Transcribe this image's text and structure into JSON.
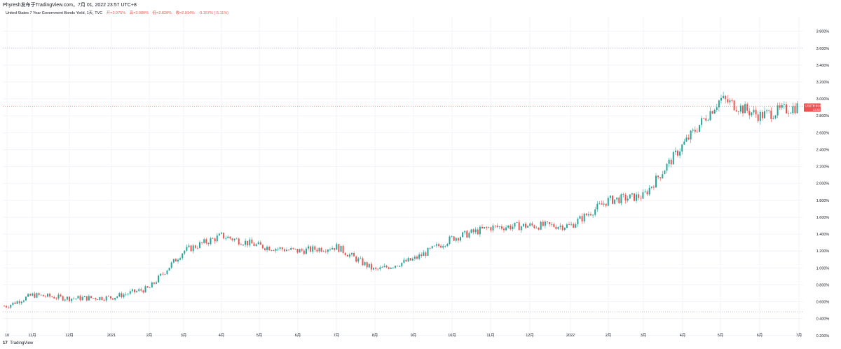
{
  "header": {
    "attribution": "Phyresh发布于TradingView.com，7月 01, 2022 23:57 UTC+8"
  },
  "legend": {
    "symbol_title": "United States 7 Year Government Bonds Yield, 1天, TVC",
    "open": "开=3.075%",
    "high": "高=3.080%",
    "low": "低=2.828%",
    "close": "收=2.914%",
    "change": "-0.157% (-5.11%)"
  },
  "price_badge": {
    "ticker": "US07Y",
    "price": "2.914%",
    "countdown": "23:02:11",
    "color": "#ef5350"
  },
  "footer": {
    "logo": "17",
    "brand": "TradingView"
  },
  "colors": {
    "up": "#26a69a",
    "down": "#ef5350",
    "grid": "#f0f3fa",
    "price_line": "#ef5350",
    "level_line": "#b2b5be"
  },
  "chart_data": {
    "type": "candlestick",
    "title": "United States 7 Year Government Bonds Yield",
    "ylabel": "",
    "y_unit": "%",
    "ylim": [
      0.2,
      3.9
    ],
    "y_ticks": [
      "0.200%",
      "0.400%",
      "0.600%",
      "0.800%",
      "1.000%",
      "1.200%",
      "1.400%",
      "1.600%",
      "1.800%",
      "2.000%",
      "2.200%",
      "2.400%",
      "2.600%",
      "2.800%",
      "3.000%",
      "3.200%",
      "3.400%",
      "3.600%",
      "3.800%"
    ],
    "y_tick_values": [
      0.2,
      0.4,
      0.6,
      0.8,
      1.0,
      1.2,
      1.4,
      1.6,
      1.8,
      2.0,
      2.2,
      2.4,
      2.6,
      2.8,
      3.0,
      3.2,
      3.4,
      3.6,
      3.8
    ],
    "x_ticks": [
      "10",
      "11月",
      "12月",
      "2021",
      "2月",
      "3月",
      "4月",
      "5月",
      "6月",
      "7月",
      "8月",
      "9月",
      "10月",
      "11月",
      "12月",
      "2022",
      "2月",
      "3月",
      "4月",
      "5月",
      "6月",
      "7月"
    ],
    "last_price": 2.914,
    "horizontal_levels": [
      3.6,
      0.48
    ],
    "grid": true,
    "series_anchors": [
      {
        "month": "10",
        "yield": 0.55
      },
      {
        "month": "11月",
        "yield": 0.68
      },
      {
        "month": "12月",
        "yield": 0.64
      },
      {
        "month": "2021",
        "yield": 0.65
      },
      {
        "month": "2月",
        "yield": 0.76
      },
      {
        "month": "3月",
        "yield": 1.2
      },
      {
        "month": "4月",
        "yield": 1.38
      },
      {
        "month": "5月",
        "yield": 1.26
      },
      {
        "month": "6月",
        "yield": 1.2
      },
      {
        "month": "7月",
        "yield": 1.25
      },
      {
        "month": "8月",
        "yield": 0.97
      },
      {
        "month": "9月",
        "yield": 1.1
      },
      {
        "month": "10月",
        "yield": 1.35
      },
      {
        "month": "11月",
        "yield": 1.48
      },
      {
        "month": "12月",
        "yield": 1.5
      },
      {
        "month": "2022",
        "yield": 1.5
      },
      {
        "month": "2月",
        "yield": 1.8
      },
      {
        "month": "3月",
        "yield": 1.85
      },
      {
        "month": "4月",
        "yield": 2.45
      },
      {
        "month": "5月",
        "yield": 3.0
      },
      {
        "month": "6月",
        "yield": 2.8
      },
      {
        "month": "7月",
        "yield": 2.914
      }
    ]
  }
}
